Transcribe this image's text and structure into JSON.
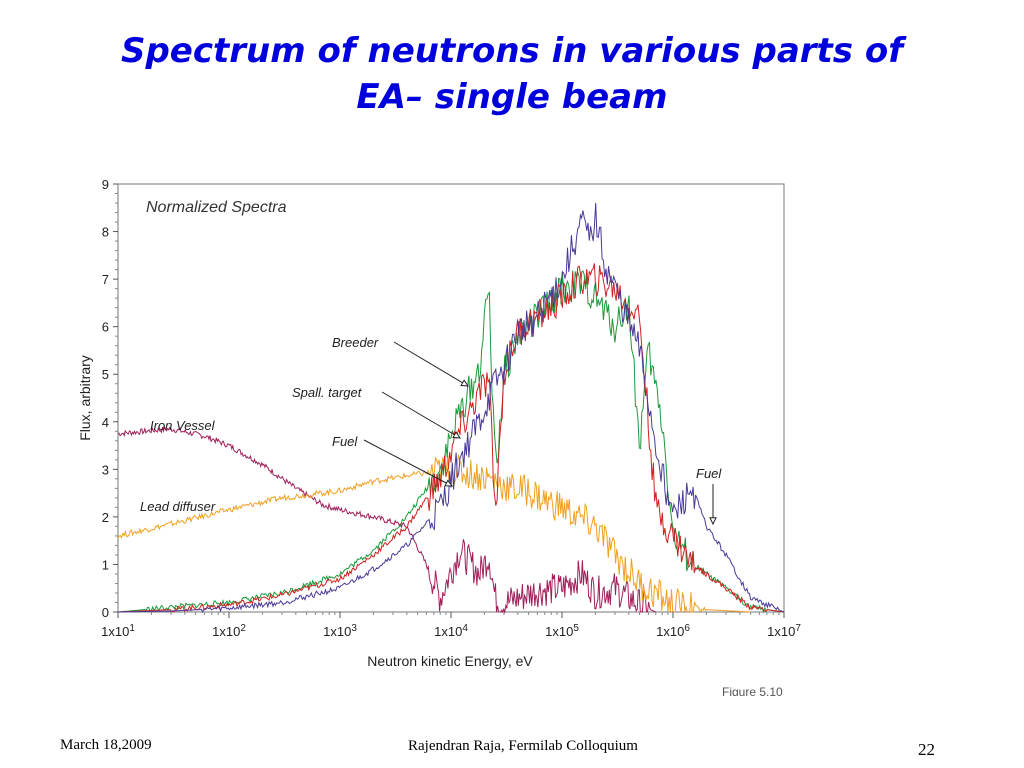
{
  "slide": {
    "title_line1": "Spectrum of neutrons in various parts of",
    "title_line2": "EA– single beam"
  },
  "footer": {
    "date": "March 18,2009",
    "presenter": "Rajendran Raja, Fermilab Colloquium",
    "page_number": "22"
  },
  "chart_data": {
    "type": "line",
    "title": "Normalized Spectra",
    "xlabel": "Neutron kinetic Energy, eV",
    "ylabel": "Flux, arbitrary",
    "x_scale": "log",
    "xlim": [
      10,
      10000000
    ],
    "ylim": [
      0,
      9
    ],
    "x_ticks": [
      "1x10^1",
      "1x10^2",
      "1x10^3",
      "1x10^4",
      "1x10^5",
      "1x10^6",
      "1x10^7"
    ],
    "y_ticks": [
      "0",
      "1",
      "2",
      "3",
      "4",
      "5",
      "6",
      "7",
      "8",
      "9"
    ],
    "figure_caption": "Figure 5.10",
    "annotations": [
      "Breeder",
      "Spall. target",
      "Fuel",
      "Iron Vessel",
      "Lead diffuser",
      "Fuel"
    ],
    "series": [
      {
        "name": "Iron Vessel",
        "color": "#a0205a",
        "x": [
          10,
          30,
          60,
          100,
          200,
          400,
          700,
          1000,
          2000,
          4000,
          6000,
          8000,
          12000,
          18000,
          22000,
          25000,
          28000,
          40000,
          60000,
          100000,
          150000,
          200000,
          300000,
          500000,
          700000
        ],
        "y": [
          3.75,
          3.85,
          3.7,
          3.5,
          3.1,
          2.6,
          2.25,
          2.15,
          2.0,
          1.8,
          1.0,
          0.3,
          1.3,
          0.8,
          1.2,
          0.3,
          0.15,
          0.3,
          0.45,
          0.5,
          0.8,
          0.4,
          0.5,
          0.15,
          0.0
        ]
      },
      {
        "name": "Lead diffuser",
        "color": "#f0a020",
        "x": [
          10,
          30,
          100,
          300,
          1000,
          2000,
          5000,
          10000,
          20000,
          28000,
          35000,
          50000,
          70000,
          100000,
          150000,
          200000,
          300000,
          500000,
          800000,
          1000000,
          2000000,
          5000000
        ],
        "y": [
          1.6,
          1.85,
          2.15,
          2.4,
          2.55,
          2.75,
          2.9,
          3.0,
          2.85,
          2.7,
          2.6,
          2.55,
          2.35,
          2.2,
          1.95,
          1.8,
          1.2,
          0.6,
          0.3,
          0.15,
          0.05,
          0.0
        ]
      },
      {
        "name": "Breeder",
        "color": "#1a9a3a",
        "x": [
          10,
          30,
          100,
          300,
          1000,
          2000,
          4000,
          8000,
          12000,
          18000,
          22000,
          24000,
          26000,
          30000,
          40000,
          60000,
          100000,
          150000,
          200000,
          300000,
          400000,
          500000,
          600000,
          800000,
          1000000,
          1500000,
          2000000,
          3000000,
          5000000,
          10000000
        ],
        "y": [
          0.0,
          0.1,
          0.2,
          0.4,
          0.8,
          1.3,
          2.0,
          3.0,
          4.2,
          5.1,
          6.9,
          4.0,
          3.2,
          5.0,
          5.8,
          6.2,
          6.8,
          6.9,
          6.6,
          6.0,
          6.5,
          3.5,
          5.5,
          4.0,
          1.6,
          1.0,
          0.8,
          0.5,
          0.1,
          0.0
        ]
      },
      {
        "name": "Spall. target",
        "color": "#d02020",
        "x": [
          10,
          30,
          100,
          300,
          1000,
          2000,
          4000,
          8000,
          12000,
          18000,
          22000,
          25000,
          30000,
          40000,
          60000,
          100000,
          150000,
          200000,
          300000,
          500000,
          700000,
          1000000,
          1500000,
          2000000,
          3000000,
          5000000,
          10000000
        ],
        "y": [
          0.0,
          0.05,
          0.15,
          0.35,
          0.7,
          1.2,
          1.8,
          2.8,
          3.8,
          4.6,
          4.9,
          2.0,
          5.0,
          5.9,
          6.2,
          6.6,
          7.0,
          7.0,
          6.8,
          6.2,
          2.2,
          1.6,
          1.0,
          0.8,
          0.5,
          0.1,
          0.0
        ]
      },
      {
        "name": "Fuel",
        "color": "#4a3a98",
        "x": [
          10,
          30,
          100,
          300,
          1000,
          2000,
          4000,
          8000,
          12000,
          18000,
          22000,
          25000,
          30000,
          40000,
          60000,
          100000,
          150000,
          180000,
          200000,
          250000,
          300000,
          500000,
          700000,
          1000000,
          1500000,
          2000000,
          3000000,
          5000000,
          10000000
        ],
        "y": [
          0.0,
          0.02,
          0.08,
          0.2,
          0.5,
          0.9,
          1.4,
          2.2,
          3.2,
          4.0,
          4.5,
          4.8,
          5.1,
          5.9,
          6.2,
          7.0,
          8.2,
          7.8,
          8.3,
          7.2,
          6.8,
          5.5,
          3.5,
          2.0,
          2.6,
          1.8,
          1.2,
          0.3,
          0.0
        ]
      }
    ]
  }
}
